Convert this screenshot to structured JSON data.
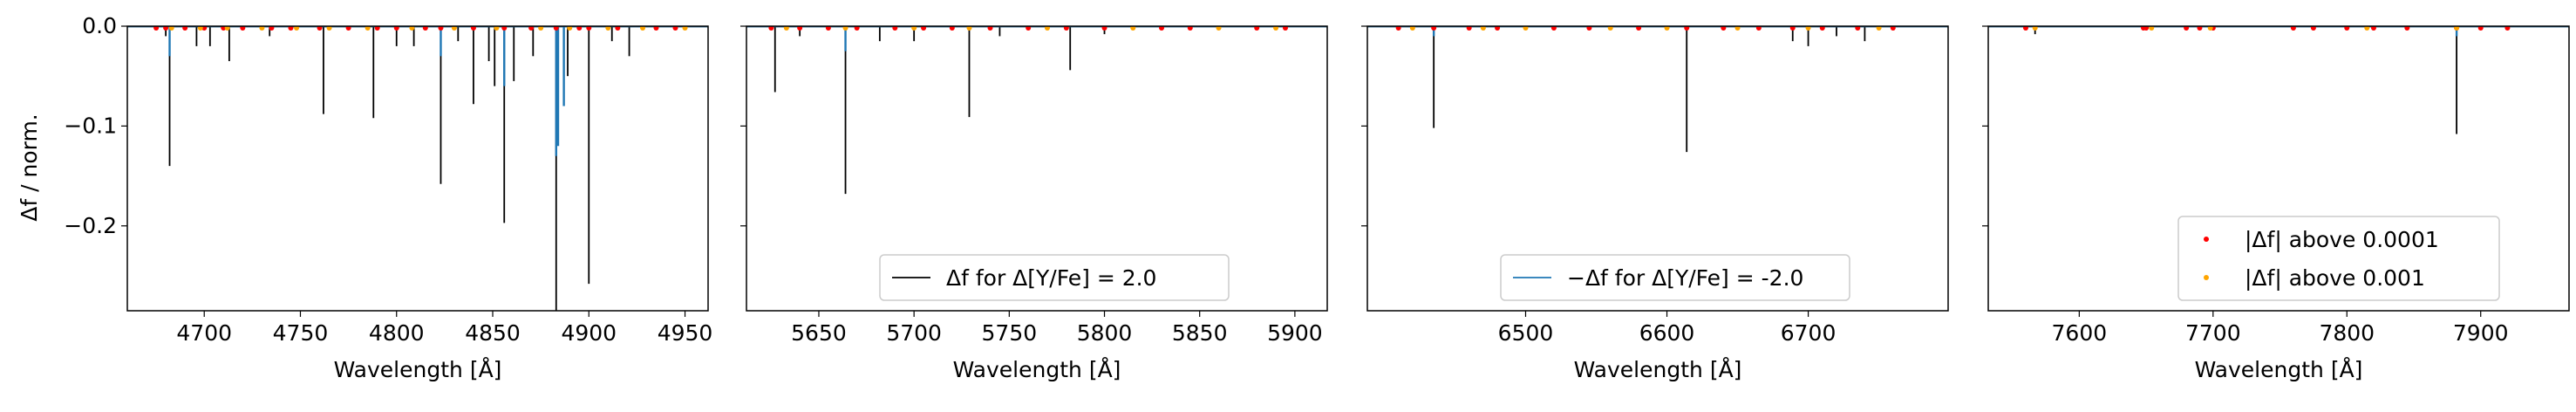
{
  "figure": {
    "ylabel": "Δf / norm.",
    "xlabel": "Wavelength [Å]"
  },
  "chart_data": [
    {
      "type": "line",
      "xlabel": "Wavelength [Å]",
      "ylabel": "Δf / norm.",
      "xlim": [
        4660,
        4962
      ],
      "ylim": [
        -0.285,
        0.0
      ],
      "xticks": [
        4700,
        4750,
        4800,
        4850,
        4900,
        4950
      ],
      "yticks": [
        0.0,
        -0.1,
        -0.2
      ],
      "ytick_labels": [
        "0.0",
        "−0.1",
        "−0.2"
      ],
      "grid": false,
      "legend": null,
      "series": [
        {
          "kind": "line",
          "color": "#000000",
          "points": [
            [
              4680,
              -0.01
            ],
            [
              4682,
              -0.14
            ],
            [
              4696,
              -0.02
            ],
            [
              4703,
              -0.02
            ],
            [
              4713,
              -0.035
            ],
            [
              4734,
              -0.01
            ],
            [
              4762,
              -0.088
            ],
            [
              4788,
              -0.092
            ],
            [
              4800,
              -0.02
            ],
            [
              4809,
              -0.02
            ],
            [
              4823,
              -0.158
            ],
            [
              4832,
              -0.015
            ],
            [
              4840,
              -0.078
            ],
            [
              4848,
              -0.035
            ],
            [
              4851,
              -0.06
            ],
            [
              4856,
              -0.197
            ],
            [
              4861,
              -0.055
            ],
            [
              4871,
              -0.03
            ],
            [
              4883,
              -0.285
            ],
            [
              4889,
              -0.05
            ],
            [
              4900,
              -0.258
            ],
            [
              4912,
              -0.015
            ],
            [
              4921,
              -0.03
            ]
          ]
        },
        {
          "kind": "line",
          "color": "#1f77b4",
          "points": [
            [
              4682,
              -0.03
            ],
            [
              4823,
              -0.03
            ],
            [
              4856,
              -0.06
            ],
            [
              4883,
              -0.13
            ],
            [
              4884,
              -0.12
            ],
            [
              4887,
              -0.08
            ]
          ]
        },
        {
          "kind": "dots",
          "color": "#ff0000",
          "x": [
            4675,
            4680,
            4690,
            4700,
            4710,
            4720,
            4735,
            4745,
            4760,
            4775,
            4790,
            4800,
            4815,
            4823,
            4840,
            4856,
            4870,
            4883,
            4895,
            4900,
            4915,
            4935,
            4945
          ]
        },
        {
          "kind": "dots",
          "color": "#ffa500",
          "x": [
            4683,
            4698,
            4712,
            4730,
            4748,
            4765,
            4785,
            4808,
            4830,
            4852,
            4875,
            4890,
            4910,
            4928,
            4950
          ]
        }
      ]
    },
    {
      "type": "line",
      "xlabel": "Wavelength [Å]",
      "xlim": [
        5612,
        5917
      ],
      "ylim": [
        -0.285,
        0.0
      ],
      "xticks": [
        5650,
        5700,
        5750,
        5800,
        5850,
        5900
      ],
      "grid": false,
      "legend": {
        "placement": "lower-center",
        "entries": [
          {
            "label": "Δf for Δ[Y/Fe] = 2.0",
            "color": "#000000",
            "linewidth": 1
          }
        ]
      },
      "series": [
        {
          "kind": "line",
          "color": "#000000",
          "points": [
            [
              5627,
              -0.066
            ],
            [
              5640,
              -0.01
            ],
            [
              5664,
              -0.168
            ],
            [
              5682,
              -0.015
            ],
            [
              5700,
              -0.015
            ],
            [
              5729,
              -0.091
            ],
            [
              5745,
              -0.01
            ],
            [
              5782,
              -0.044
            ],
            [
              5800,
              -0.008
            ]
          ]
        },
        {
          "kind": "line",
          "color": "#1f77b4",
          "points": [
            [
              5664,
              -0.025
            ]
          ]
        },
        {
          "kind": "dots",
          "color": "#ff0000",
          "x": [
            5625,
            5640,
            5655,
            5670,
            5690,
            5705,
            5720,
            5740,
            5760,
            5780,
            5800,
            5830,
            5845,
            5880,
            5895
          ]
        },
        {
          "kind": "dots",
          "color": "#ffa500",
          "x": [
            5633,
            5664,
            5700,
            5729,
            5770,
            5815,
            5860,
            5890
          ]
        }
      ]
    },
    {
      "type": "line",
      "xlabel": "Wavelength [Å]",
      "xlim": [
        6388,
        6799
      ],
      "ylim": [
        -0.285,
        0.0
      ],
      "xticks": [
        6500,
        6600,
        6700
      ],
      "grid": false,
      "legend": {
        "placement": "lower-center",
        "entries": [
          {
            "label": "−Δf for Δ[Y/Fe] = -2.0",
            "color": "#1f77b4",
            "linewidth": 1
          }
        ]
      },
      "series": [
        {
          "kind": "line",
          "color": "#000000",
          "points": [
            [
              6435,
              -0.102
            ],
            [
              6614,
              -0.126
            ],
            [
              6689,
              -0.015
            ],
            [
              6700,
              -0.02
            ],
            [
              6720,
              -0.01
            ],
            [
              6740,
              -0.015
            ]
          ]
        },
        {
          "kind": "line",
          "color": "#1f77b4",
          "points": [
            [
              6435,
              -0.01
            ]
          ]
        },
        {
          "kind": "dots",
          "color": "#ff0000",
          "x": [
            6410,
            6435,
            6460,
            6480,
            6520,
            6545,
            6580,
            6614,
            6640,
            6665,
            6689,
            6710,
            6735,
            6760
          ]
        },
        {
          "kind": "dots",
          "color": "#ffa500",
          "x": [
            6420,
            6470,
            6500,
            6560,
            6600,
            6650,
            6700,
            6750
          ]
        }
      ]
    },
    {
      "type": "line",
      "xlabel": "Wavelength [Å]",
      "xlim": [
        7532,
        7966
      ],
      "ylim": [
        -0.285,
        0.0
      ],
      "xticks": [
        7600,
        7700,
        7800,
        7900
      ],
      "grid": false,
      "legend": {
        "placement": "lower-right",
        "entries": [
          {
            "label": "|Δf| above 0.0001",
            "color": "#ff0000",
            "marker": "dot"
          },
          {
            "label": "|Δf| above 0.001",
            "color": "#ffa500",
            "marker": "dot"
          }
        ]
      },
      "series": [
        {
          "kind": "line",
          "color": "#000000",
          "points": [
            [
              7567,
              -0.008
            ],
            [
              7882,
              -0.108
            ]
          ]
        },
        {
          "kind": "line",
          "color": "#1f77b4",
          "points": [
            [
              7882,
              -0.01
            ]
          ]
        },
        {
          "kind": "dots",
          "color": "#ff0000",
          "x": [
            7560,
            7648,
            7650,
            7680,
            7690,
            7700,
            7760,
            7775,
            7800,
            7820,
            7845,
            7882,
            7900,
            7920
          ]
        },
        {
          "kind": "dots",
          "color": "#ffa500",
          "x": [
            7567,
            7654,
            7698,
            7815,
            7882
          ]
        }
      ]
    }
  ]
}
